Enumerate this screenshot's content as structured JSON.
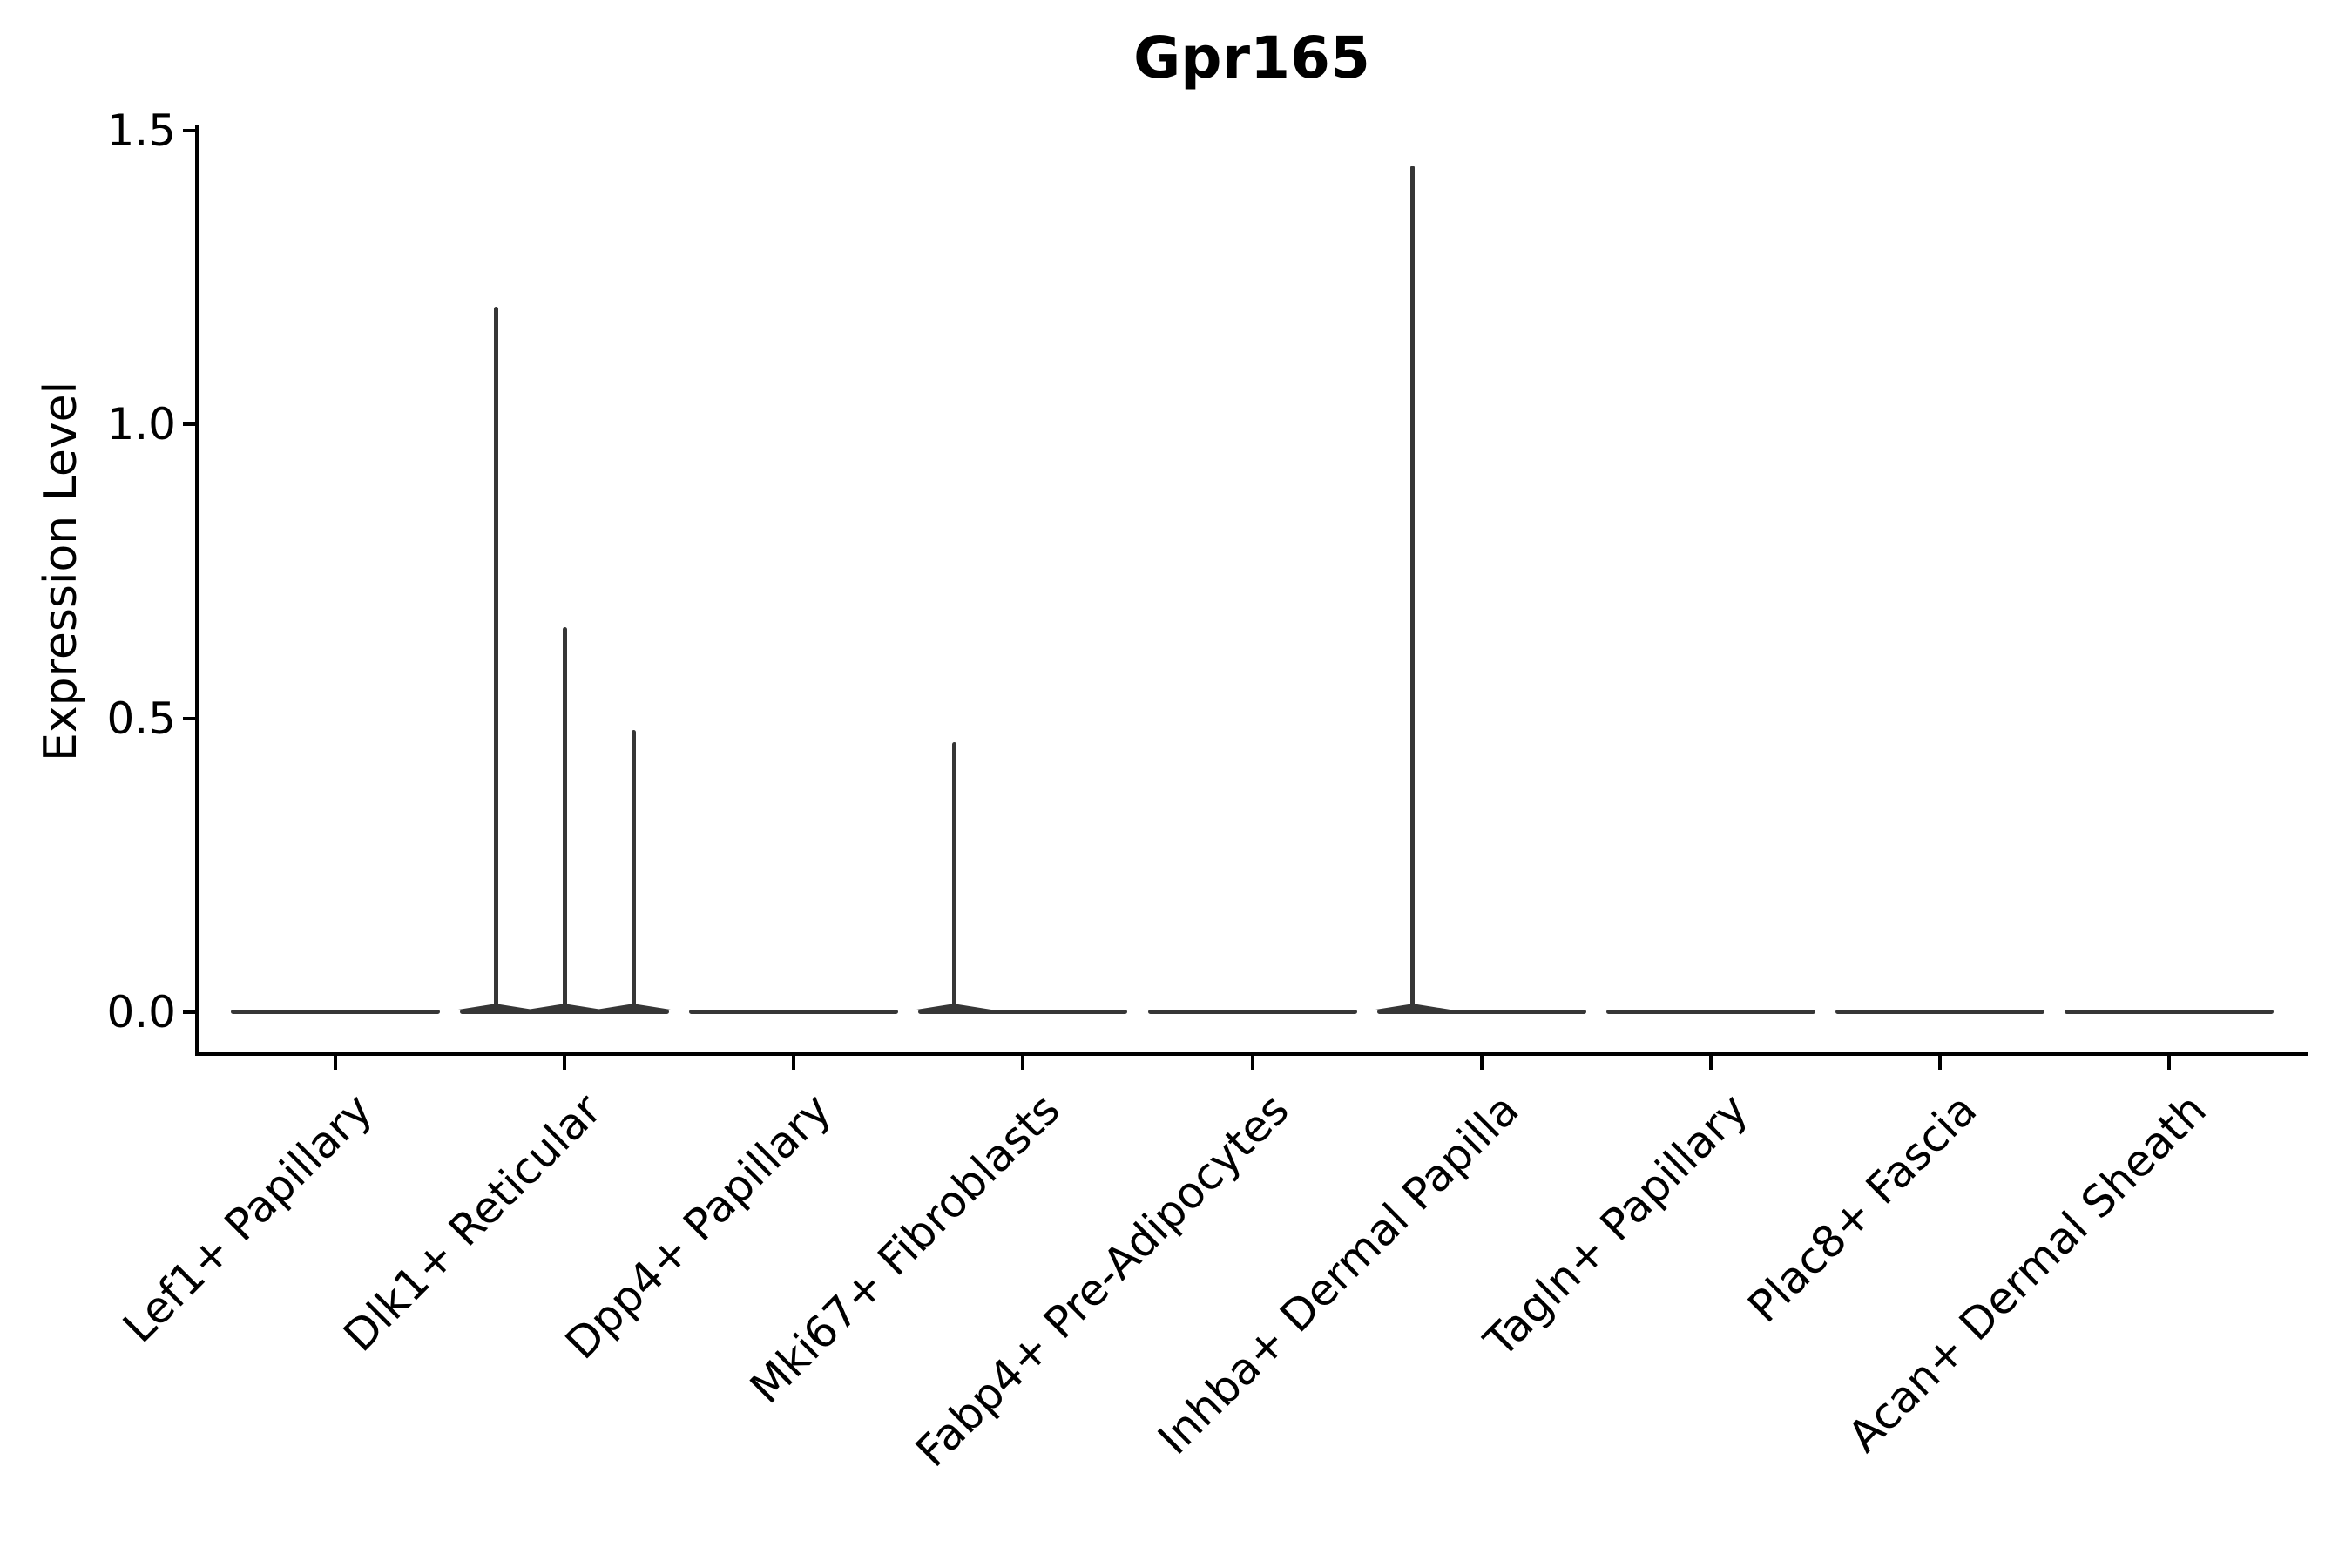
{
  "title": "Gpr165",
  "y_axis": {
    "label": "Expression Level",
    "ticks": [
      {
        "label": "0.0",
        "value": 0.0
      },
      {
        "label": "0.5",
        "value": 0.5
      },
      {
        "label": "1.0",
        "value": 1.0
      },
      {
        "label": "1.5",
        "value": 1.5
      }
    ]
  },
  "x_axis": {
    "categories": [
      "Lef1+ Papillary",
      "Dlk1+ Reticular",
      "Dpp4+ Papillary",
      "Mki67+ Fibroblasts",
      "Fabp4+ Pre-Adipocytes",
      "Inhba+ Dermal Papilla",
      "Tagln+ Papillary",
      "Plac8+ Fascia",
      "Acan+ Dermal Sheath"
    ]
  },
  "chart_data": {
    "type": "violin",
    "title": "Gpr165",
    "xlabel": "",
    "ylabel": "Expression Level",
    "ylim": [
      0,
      1.5
    ],
    "yticks": [
      0.0,
      0.5,
      1.0,
      1.5
    ],
    "grid": false,
    "legend_position": "none",
    "line_color": "#363636",
    "axis_color": "#000000",
    "categories": [
      "Lef1+ Papillary",
      "Dlk1+ Reticular",
      "Dpp4+ Papillary",
      "Mki67+ Fibroblasts",
      "Fabp4+ Pre-Adipocytes",
      "Inhba+ Dermal Papilla",
      "Tagln+ Papillary",
      "Plac8+ Fascia",
      "Acan+ Dermal Sheath"
    ],
    "violins": [
      {
        "category": "Lef1+ Papillary",
        "baseline_value": 0,
        "spikes": []
      },
      {
        "category": "Dlk1+ Reticular",
        "baseline_value": 0,
        "spikes": [
          {
            "offset": -0.3,
            "value": 1.2
          },
          {
            "offset": 0.0,
            "value": 0.655
          },
          {
            "offset": 0.3,
            "value": 0.48
          }
        ]
      },
      {
        "category": "Dpp4+ Papillary",
        "baseline_value": 0,
        "spikes": []
      },
      {
        "category": "Mki67+ Fibroblasts",
        "baseline_value": 0,
        "spikes": [
          {
            "offset": -0.3,
            "value": 0.46
          }
        ]
      },
      {
        "category": "Fabp4+ Pre-Adipocytes",
        "baseline_value": 0,
        "spikes": []
      },
      {
        "category": "Inhba+ Dermal Papilla",
        "baseline_value": 0,
        "spikes": [
          {
            "offset": -0.3,
            "value": 1.44
          }
        ]
      },
      {
        "category": "Tagln+ Papillary",
        "baseline_value": 0,
        "spikes": []
      },
      {
        "category": "Plac8+ Fascia",
        "baseline_value": 0,
        "spikes": []
      },
      {
        "category": "Acan+ Dermal Sheath",
        "baseline_value": 0,
        "spikes": []
      }
    ]
  }
}
